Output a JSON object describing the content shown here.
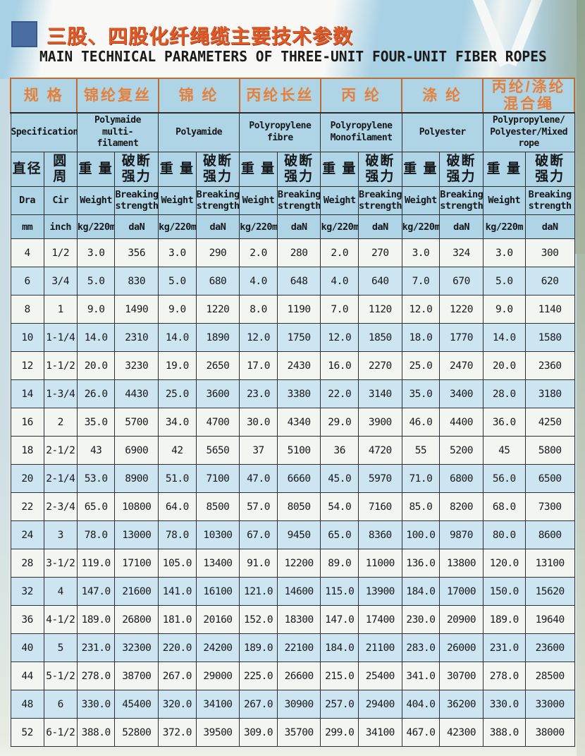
{
  "page": {
    "title_cn": "三股、四股化纤绳缆主要技术参数",
    "title_en": "MAIN TECHNICAL PARAMETERS OF THREE-UNIT FOUR-UNIT FIBER ROPES"
  },
  "table": {
    "col_groups": [
      {
        "cn": "规 格",
        "en": "Specification"
      },
      {
        "cn": "锦纶复丝",
        "en": "Polymaide multi-\nfilament"
      },
      {
        "cn": "锦 纶",
        "en": "Polyamide"
      },
      {
        "cn": "丙纶长丝",
        "en": "Polyropylene\nfibre"
      },
      {
        "cn": "丙 纶",
        "en": "Polyropylene\nMonofilament"
      },
      {
        "cn": "涤 纶",
        "en": "Polyester"
      },
      {
        "cn": "丙纶/涤纶\n混合绳",
        "en": "Polypropylene/\nPolyester/Mixed\nrope"
      }
    ],
    "sub": {
      "dia_cn": "直径",
      "dia_en": "Dra",
      "dia_unit": "mm",
      "cir_cn": "圆 周",
      "cir_en": "Cir",
      "cir_unit": "inch",
      "weight_cn": "重 量",
      "weight_en": "Weight",
      "weight_unit": "kg/220m",
      "strength_cn": "破断\n强力",
      "strength_en": "Breaking\nstrength",
      "strength_unit": "daN"
    },
    "row_shading": [
      0,
      1,
      0,
      1,
      0,
      1,
      0,
      0,
      1,
      0,
      1,
      0,
      1,
      0,
      1,
      0,
      1,
      0
    ],
    "rows": [
      [
        "4",
        "1/2",
        "3.0",
        "356",
        "3.0",
        "290",
        "2.0",
        "280",
        "2.0",
        "270",
        "3.0",
        "324",
        "3.0",
        "300"
      ],
      [
        "6",
        "3/4",
        "5.0",
        "830",
        "5.0",
        "680",
        "4.0",
        "648",
        "4.0",
        "640",
        "7.0",
        "670",
        "5.0",
        "620"
      ],
      [
        "8",
        "1",
        "9.0",
        "1490",
        "9.0",
        "1220",
        "8.0",
        "1190",
        "7.0",
        "1120",
        "12.0",
        "1220",
        "9.0",
        "1140"
      ],
      [
        "10",
        "1-1/4",
        "14.0",
        "2310",
        "14.0",
        "1890",
        "12.0",
        "1750",
        "12.0",
        "1850",
        "18.0",
        "1770",
        "14.0",
        "1580"
      ],
      [
        "12",
        "1-1/2",
        "20.0",
        "3230",
        "19.0",
        "2650",
        "17.0",
        "2430",
        "16.0",
        "2270",
        "25.0",
        "2470",
        "20.0",
        "2360"
      ],
      [
        "14",
        "1-3/4",
        "26.0",
        "4430",
        "25.0",
        "3600",
        "23.0",
        "3380",
        "22.0",
        "3140",
        "35.0",
        "3400",
        "28.0",
        "3180"
      ],
      [
        "16",
        "2",
        "35.0",
        "5700",
        "34.0",
        "4700",
        "30.0",
        "4340",
        "29.0",
        "3900",
        "46.0",
        "4400",
        "36.0",
        "4250"
      ],
      [
        "18",
        "2-1/2",
        "43",
        "6900",
        "42",
        "5650",
        "37",
        "5100",
        "36",
        "4720",
        "55",
        "5200",
        "45",
        "5800"
      ],
      [
        "20",
        "2-1/4",
        "53.0",
        "8900",
        "51.0",
        "7100",
        "47.0",
        "6660",
        "45.0",
        "5970",
        "71.0",
        "6800",
        "56.0",
        "6500"
      ],
      [
        "22",
        "2-3/4",
        "65.0",
        "10800",
        "64.0",
        "8500",
        "57.0",
        "8050",
        "54.0",
        "7160",
        "85.0",
        "8200",
        "68.0",
        "7300"
      ],
      [
        "24",
        "3",
        "78.0",
        "13000",
        "78.0",
        "10300",
        "67.0",
        "9450",
        "65.0",
        "8360",
        "100.0",
        "9870",
        "80.0",
        "8600"
      ],
      [
        "28",
        "3-1/2",
        "119.0",
        "17100",
        "105.0",
        "13400",
        "91.0",
        "12200",
        "89.0",
        "11000",
        "136.0",
        "13800",
        "120.0",
        "13100"
      ],
      [
        "32",
        "4",
        "147.0",
        "21600",
        "141.0",
        "16100",
        "121.0",
        "14600",
        "115.0",
        "13900",
        "184.0",
        "17000",
        "150.0",
        "15620"
      ],
      [
        "36",
        "4-1/2",
        "189.0",
        "26800",
        "181.0",
        "20160",
        "152.0",
        "18300",
        "147.0",
        "17400",
        "230.0",
        "20900",
        "189.0",
        "19640"
      ],
      [
        "40",
        "5",
        "231.0",
        "32300",
        "220.0",
        "24200",
        "189.0",
        "22100",
        "184.0",
        "21100",
        "283.0",
        "26000",
        "231.0",
        "23600"
      ],
      [
        "44",
        "5-1/2",
        "278.0",
        "38700",
        "267.0",
        "29000",
        "225.0",
        "26600",
        "215.0",
        "25400",
        "341.0",
        "30700",
        "278.0",
        "28500"
      ],
      [
        "48",
        "6",
        "330.0",
        "45400",
        "320.0",
        "34100",
        "267.0",
        "30900",
        "257.0",
        "29400",
        "404.0",
        "36200",
        "330.0",
        "33000"
      ],
      [
        "52",
        "6-1/2",
        "388.0",
        "52800",
        "372.0",
        "39500",
        "309.0",
        "35700",
        "299.0",
        "34100",
        "467.0",
        "42300",
        "388.0",
        "38000"
      ]
    ]
  },
  "colors": {
    "title_orange": "#e05a28",
    "header_orange": "#e5803b",
    "header_border_orange": "#bc6d35",
    "header_bg": "#aed4e6",
    "row_blue": "#cce5f1",
    "row_white": "#f3f5f1",
    "logo_blue": "#4a6da4",
    "edge_green": "#9aa894"
  }
}
